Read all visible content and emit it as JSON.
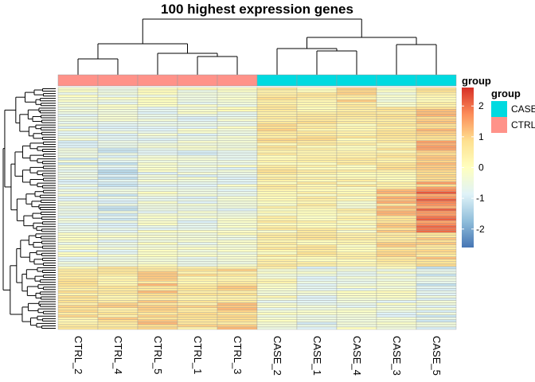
{
  "chart_data": {
    "type": "heatmap",
    "title": "100 highest expression genes",
    "columns": [
      "CTRL_2",
      "CTRL_4",
      "CTRL_5",
      "CTRL_1",
      "CTRL_3",
      "CASE_2",
      "CASE_1",
      "CASE_4",
      "CASE_3",
      "CASE_5"
    ],
    "column_groups": [
      "CTRL",
      "CTRL",
      "CTRL",
      "CTRL",
      "CTRL",
      "CASE",
      "CASE",
      "CASE",
      "CASE",
      "CASE"
    ],
    "group_colors": {
      "CASE": "#00DAE0",
      "CTRL": "#FF9289"
    },
    "n_rows": 100,
    "color_scale": {
      "min": -2.6,
      "max": 2.6,
      "ticks": [
        2,
        1,
        0,
        -1,
        -2
      ],
      "colors": [
        "#4575B4",
        "#91BFDB",
        "#E0F3F8",
        "#FFFFBF",
        "#FEE090",
        "#FC8D59",
        "#D73027"
      ]
    },
    "legend": {
      "scale_title": "group",
      "group_title": "group",
      "group_entries": [
        {
          "label": "CASE",
          "color": "#00DAE0"
        },
        {
          "label": "CTRL",
          "color": "#FF9289"
        }
      ]
    },
    "row_clusters": [
      {
        "rows": 8,
        "levels": [
          -0.3,
          -0.4,
          -0.2,
          -0.3,
          -0.2,
          0.6,
          0.3,
          0.7,
          -0.4,
          0.5
        ]
      },
      {
        "rows": 14,
        "levels": [
          -0.6,
          -0.6,
          -0.5,
          -0.5,
          -0.3,
          0.6,
          0.5,
          0.4,
          0.6,
          0.9
        ]
      },
      {
        "rows": 20,
        "levels": [
          -0.7,
          -0.9,
          -0.5,
          -0.6,
          -0.5,
          0.4,
          0.3,
          0.3,
          0.5,
          1.2
        ]
      },
      {
        "rows": 18,
        "levels": [
          -0.6,
          -0.8,
          -0.4,
          -0.5,
          -0.5,
          0.2,
          0.2,
          0.1,
          1.0,
          1.8
        ]
      },
      {
        "rows": 14,
        "levels": [
          -0.4,
          -0.5,
          -0.3,
          -0.3,
          -0.3,
          0.3,
          0.4,
          0.2,
          0.7,
          0.9
        ]
      },
      {
        "rows": 14,
        "levels": [
          0.5,
          0.4,
          0.9,
          0.6,
          0.7,
          0.0,
          -0.5,
          -0.4,
          -0.2,
          -0.8
        ]
      },
      {
        "rows": 12,
        "levels": [
          0.6,
          0.7,
          1.0,
          0.7,
          0.9,
          -0.4,
          -0.6,
          -0.4,
          -0.5,
          -0.7
        ]
      }
    ]
  }
}
